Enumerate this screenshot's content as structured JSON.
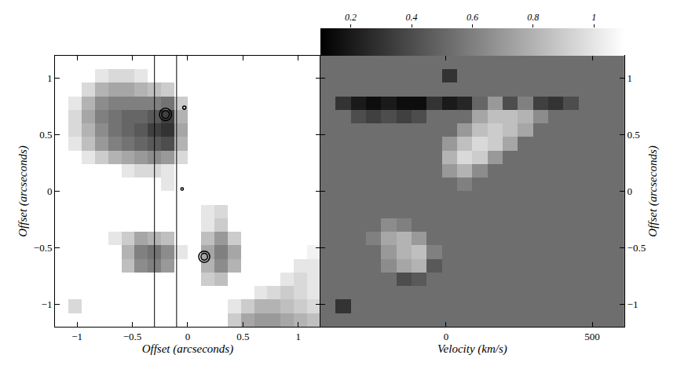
{
  "chart_data": [
    {
      "type": "heatmap",
      "x_label": "Offset (arcseconds)",
      "y_label": "Offset (arcseconds)",
      "xlim": [
        -1.2,
        1.2
      ],
      "ylim": [
        -1.2,
        1.2
      ],
      "xticks": [
        -1,
        -0.5,
        0,
        0.5,
        1
      ],
      "yticks": [
        -1,
        -0.5,
        0,
        0.5,
        1
      ],
      "zlim": [
        0,
        1
      ],
      "x": [
        -1.14,
        -1.02,
        -0.9,
        -0.78,
        -0.66,
        -0.54,
        -0.42,
        -0.3,
        -0.18,
        -0.06,
        0.06,
        0.18,
        0.3,
        0.42,
        0.54,
        0.66,
        0.78,
        0.9,
        1.02,
        1.14
      ],
      "y": [
        -1.14,
        -1.02,
        -0.9,
        -0.78,
        -0.66,
        -0.54,
        -0.42,
        -0.3,
        -0.18,
        -0.06,
        0.06,
        0.18,
        0.3,
        0.42,
        0.54,
        0.66,
        0.78,
        0.9,
        1.02,
        1.14
      ],
      "z": [
        [
          0,
          0,
          0,
          0,
          0,
          0,
          0,
          0,
          0,
          0,
          0,
          0,
          0,
          0.2,
          0.35,
          0.4,
          0.4,
          0.35,
          0.3,
          0.25
        ],
        [
          0,
          0.15,
          0,
          0,
          0,
          0,
          0,
          0,
          0,
          0,
          0,
          0,
          0,
          0.1,
          0.2,
          0.3,
          0.3,
          0.25,
          0.2,
          0.15
        ],
        [
          0,
          0,
          0,
          0,
          0,
          0,
          0,
          0,
          0,
          0,
          0,
          0,
          0,
          0,
          0,
          0.1,
          0.15,
          0.2,
          0.15,
          0.1
        ],
        [
          0,
          0,
          0,
          0,
          0,
          0,
          0,
          0,
          0,
          0,
          0,
          0.2,
          0.25,
          0,
          0,
          0,
          0,
          0.1,
          0.15,
          0.1
        ],
        [
          0,
          0,
          0,
          0,
          0,
          0.25,
          0.45,
          0.5,
          0.4,
          0,
          0,
          0.3,
          0.45,
          0.3,
          0,
          0,
          0,
          0,
          0.1,
          0.1
        ],
        [
          0,
          0,
          0,
          0,
          0,
          0.3,
          0.5,
          0.55,
          0.45,
          0.1,
          0,
          0.35,
          0.5,
          0.35,
          0,
          0,
          0,
          0,
          0,
          0.05
        ],
        [
          0,
          0,
          0,
          0,
          0.1,
          0.2,
          0.35,
          0.3,
          0.25,
          0,
          0,
          0.25,
          0.4,
          0.2,
          0,
          0,
          0,
          0,
          0,
          0
        ],
        [
          0,
          0,
          0,
          0,
          0,
          0,
          0,
          0,
          0,
          0,
          0,
          0.1,
          0.2,
          0,
          0,
          0,
          0,
          0,
          0,
          0
        ],
        [
          0,
          0,
          0,
          0,
          0,
          0,
          0,
          0,
          0,
          0,
          0,
          0.1,
          0.15,
          0,
          0,
          0,
          0,
          0,
          0,
          0
        ],
        [
          0,
          0,
          0,
          0,
          0,
          0,
          0,
          0,
          0,
          0,
          0,
          0,
          0,
          0,
          0,
          0,
          0,
          0,
          0,
          0
        ],
        [
          0,
          0,
          0,
          0,
          0,
          0,
          0,
          0,
          0.1,
          0,
          0,
          0,
          0,
          0,
          0,
          0,
          0,
          0,
          0,
          0
        ],
        [
          0,
          0,
          0,
          0,
          0,
          0.1,
          0.15,
          0.15,
          0.1,
          0,
          0,
          0,
          0,
          0,
          0,
          0,
          0,
          0,
          0,
          0
        ],
        [
          0,
          0,
          0.1,
          0.2,
          0.3,
          0.35,
          0.4,
          0.45,
          0.4,
          0.15,
          0,
          0,
          0,
          0,
          0,
          0,
          0,
          0,
          0,
          0
        ],
        [
          0,
          0.1,
          0.25,
          0.4,
          0.5,
          0.55,
          0.6,
          0.65,
          0.7,
          0.3,
          0,
          0,
          0,
          0,
          0,
          0,
          0,
          0,
          0,
          0
        ],
        [
          0,
          0.15,
          0.3,
          0.45,
          0.55,
          0.6,
          0.65,
          0.75,
          0.8,
          0.35,
          0,
          0,
          0,
          0,
          0,
          0,
          0,
          0,
          0,
          0
        ],
        [
          0,
          0.15,
          0.35,
          0.5,
          0.55,
          0.6,
          0.6,
          0.65,
          0.75,
          0.3,
          0,
          0,
          0,
          0,
          0,
          0,
          0,
          0,
          0,
          0
        ],
        [
          0,
          0.1,
          0.3,
          0.45,
          0.5,
          0.5,
          0.5,
          0.5,
          0.55,
          0.2,
          0,
          0,
          0,
          0,
          0,
          0,
          0,
          0,
          0,
          0
        ],
        [
          0,
          0,
          0.15,
          0.3,
          0.35,
          0.35,
          0.3,
          0.25,
          0.2,
          0,
          0,
          0,
          0,
          0,
          0,
          0,
          0,
          0,
          0,
          0
        ],
        [
          0,
          0,
          0,
          0.1,
          0.15,
          0.15,
          0.1,
          0,
          0,
          0,
          0,
          0,
          0,
          0,
          0,
          0,
          0,
          0,
          0,
          0
        ],
        [
          0,
          0,
          0,
          0,
          0,
          0,
          0,
          0,
          0,
          0,
          0,
          0,
          0,
          0,
          0,
          0,
          0,
          0,
          0,
          0
        ]
      ],
      "contours": [
        {
          "x": -0.2,
          "y": 0.68,
          "radii": [
            0.035,
            0.055
          ]
        },
        {
          "x": -0.03,
          "y": 0.74,
          "radii": [
            0.015
          ]
        },
        {
          "x": -0.05,
          "y": 0.02,
          "radii": [
            0.012
          ]
        },
        {
          "x": 0.15,
          "y": -0.58,
          "radii": [
            0.03,
            0.05
          ]
        }
      ],
      "slit": [
        -0.3,
        -0.1
      ]
    },
    {
      "type": "heatmap",
      "x_label": "Velocity (km/s)",
      "y_label": "Offset (arcseconds)",
      "xlim": [
        -430,
        610
      ],
      "ylim": [
        -1.2,
        1.2
      ],
      "xticks": [
        0,
        500
      ],
      "yticks": [
        -1,
        -0.5,
        0,
        0.5,
        1
      ],
      "x": [
        -404,
        -352,
        -300,
        -248,
        -196,
        -144,
        -92,
        -40,
        12,
        64,
        116,
        168,
        220,
        272,
        324,
        376,
        428,
        480,
        532,
        584
      ],
      "y": [
        -1.14,
        -1.02,
        -0.9,
        -0.78,
        -0.66,
        -0.54,
        -0.42,
        -0.3,
        -0.18,
        -0.06,
        0.06,
        0.18,
        0.3,
        0.42,
        0.54,
        0.66,
        0.78,
        0.9,
        1.02,
        1.14
      ],
      "z": [
        [
          0.53,
          0.53,
          0.53,
          0.53,
          0.53,
          0.53,
          0.53,
          0.53,
          0.53,
          0.53,
          0.53,
          0.53,
          0.53,
          0.53,
          0.53,
          0.53,
          0.53,
          0.53,
          0.53,
          0.53
        ],
        [
          0.53,
          0.3,
          0.53,
          0.53,
          0.53,
          0.53,
          0.53,
          0.53,
          0.53,
          0.53,
          0.53,
          0.53,
          0.53,
          0.53,
          0.53,
          0.53,
          0.53,
          0.53,
          0.53,
          0.53
        ],
        [
          0.53,
          0.53,
          0.53,
          0.53,
          0.53,
          0.53,
          0.53,
          0.53,
          0.53,
          0.53,
          0.53,
          0.53,
          0.53,
          0.53,
          0.53,
          0.53,
          0.53,
          0.53,
          0.53,
          0.53
        ],
        [
          0.53,
          0.53,
          0.53,
          0.53,
          0.53,
          0.4,
          0.45,
          0.53,
          0.53,
          0.53,
          0.53,
          0.53,
          0.53,
          0.53,
          0.53,
          0.53,
          0.53,
          0.53,
          0.53,
          0.53
        ],
        [
          0.53,
          0.53,
          0.53,
          0.53,
          0.65,
          0.75,
          0.8,
          0.45,
          0.53,
          0.53,
          0.53,
          0.53,
          0.53,
          0.53,
          0.53,
          0.53,
          0.53,
          0.53,
          0.53,
          0.53
        ],
        [
          0.53,
          0.53,
          0.53,
          0.53,
          0.7,
          0.8,
          0.85,
          0.6,
          0.53,
          0.53,
          0.53,
          0.53,
          0.53,
          0.53,
          0.53,
          0.53,
          0.53,
          0.53,
          0.53,
          0.53
        ],
        [
          0.53,
          0.53,
          0.53,
          0.6,
          0.75,
          0.8,
          0.7,
          0.53,
          0.53,
          0.53,
          0.53,
          0.53,
          0.53,
          0.53,
          0.53,
          0.53,
          0.53,
          0.53,
          0.53,
          0.53
        ],
        [
          0.53,
          0.53,
          0.53,
          0.53,
          0.65,
          0.6,
          0.53,
          0.53,
          0.53,
          0.53,
          0.53,
          0.53,
          0.53,
          0.53,
          0.53,
          0.53,
          0.53,
          0.53,
          0.53,
          0.53
        ],
        [
          0.53,
          0.53,
          0.53,
          0.53,
          0.53,
          0.53,
          0.53,
          0.53,
          0.53,
          0.53,
          0.53,
          0.53,
          0.53,
          0.53,
          0.53,
          0.53,
          0.53,
          0.53,
          0.53,
          0.53
        ],
        [
          0.53,
          0.53,
          0.53,
          0.53,
          0.53,
          0.53,
          0.53,
          0.53,
          0.53,
          0.53,
          0.53,
          0.53,
          0.53,
          0.53,
          0.53,
          0.53,
          0.53,
          0.53,
          0.53,
          0.53
        ],
        [
          0.53,
          0.53,
          0.53,
          0.53,
          0.53,
          0.53,
          0.53,
          0.53,
          0.53,
          0.6,
          0.53,
          0.53,
          0.53,
          0.53,
          0.53,
          0.53,
          0.53,
          0.53,
          0.53,
          0.53
        ],
        [
          0.53,
          0.53,
          0.53,
          0.53,
          0.53,
          0.53,
          0.53,
          0.53,
          0.7,
          0.8,
          0.65,
          0.53,
          0.53,
          0.53,
          0.53,
          0.53,
          0.53,
          0.53,
          0.53,
          0.53
        ],
        [
          0.53,
          0.53,
          0.53,
          0.53,
          0.53,
          0.53,
          0.53,
          0.53,
          0.8,
          0.95,
          0.9,
          0.7,
          0.53,
          0.53,
          0.53,
          0.53,
          0.53,
          0.53,
          0.53,
          0.53
        ],
        [
          0.53,
          0.53,
          0.53,
          0.53,
          0.53,
          0.53,
          0.53,
          0.53,
          0.7,
          0.85,
          0.95,
          0.9,
          0.75,
          0.53,
          0.53,
          0.53,
          0.53,
          0.53,
          0.53,
          0.53
        ],
        [
          0.53,
          0.53,
          0.53,
          0.53,
          0.53,
          0.53,
          0.53,
          0.53,
          0.53,
          0.7,
          0.85,
          0.9,
          0.85,
          0.75,
          0.53,
          0.53,
          0.53,
          0.53,
          0.53,
          0.53
        ],
        [
          0.53,
          0.53,
          0.4,
          0.35,
          0.4,
          0.35,
          0.4,
          0.53,
          0.53,
          0.53,
          0.75,
          0.85,
          0.85,
          0.8,
          0.65,
          0.53,
          0.53,
          0.53,
          0.53,
          0.53
        ],
        [
          0.53,
          0.3,
          0.2,
          0.15,
          0.2,
          0.15,
          0.15,
          0.3,
          0.2,
          0.25,
          0.5,
          0.7,
          0.4,
          0.6,
          0.35,
          0.3,
          0.4,
          0.53,
          0.53,
          0.53
        ],
        [
          0.53,
          0.53,
          0.53,
          0.53,
          0.53,
          0.53,
          0.53,
          0.53,
          0.53,
          0.53,
          0.53,
          0.53,
          0.53,
          0.53,
          0.53,
          0.53,
          0.53,
          0.53,
          0.53,
          0.53
        ],
        [
          0.53,
          0.53,
          0.53,
          0.53,
          0.53,
          0.53,
          0.53,
          0.53,
          0.3,
          0.53,
          0.53,
          0.53,
          0.53,
          0.53,
          0.53,
          0.53,
          0.53,
          0.53,
          0.53,
          0.53
        ],
        [
          0.53,
          0.53,
          0.53,
          0.53,
          0.53,
          0.53,
          0.53,
          0.53,
          0.53,
          0.53,
          0.53,
          0.53,
          0.53,
          0.53,
          0.53,
          0.53,
          0.53,
          0.53,
          0.53,
          0.53
        ]
      ],
      "colorbar": {
        "range": [
          0.1,
          1.1
        ],
        "ticks": [
          0.2,
          0.4,
          0.6,
          0.8,
          1
        ]
      }
    }
  ]
}
